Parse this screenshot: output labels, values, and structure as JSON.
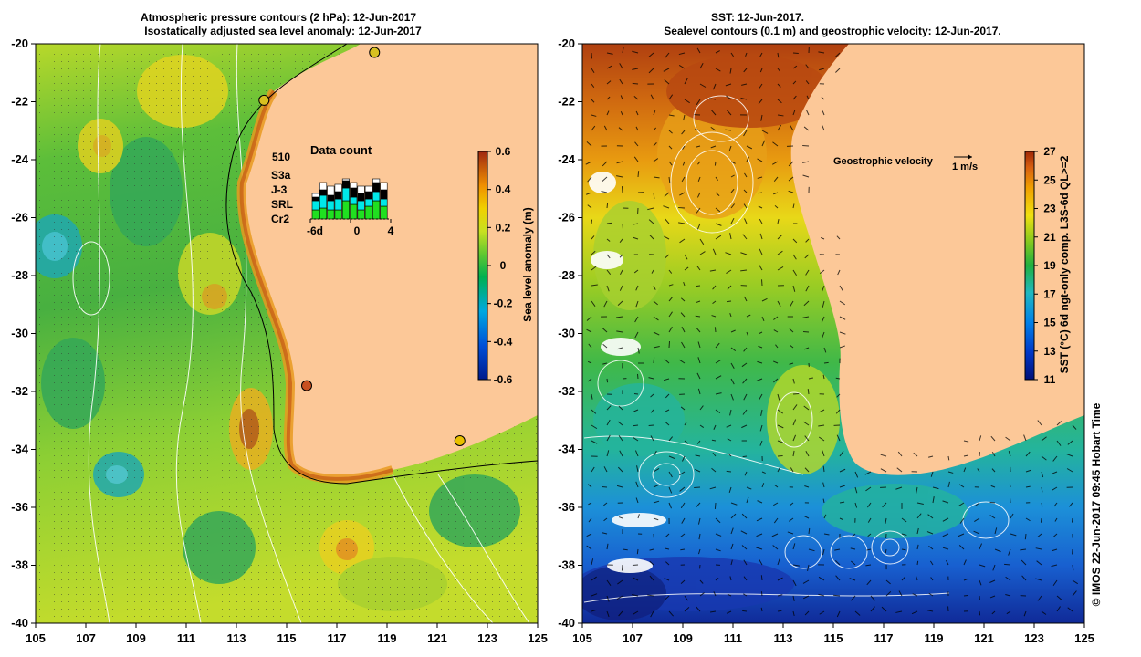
{
  "left_panel": {
    "title_line1": "Atmospheric pressure contours (2 hPa): 12-Jun-2017",
    "title_line2": "Isostatically adjusted sea level anomaly: 12-Jun-2017",
    "colorbar": {
      "label": "Sea level anomaly (m)",
      "ticks": [
        "0.6",
        "0.4",
        "0.2",
        "0",
        "-0.2",
        "-0.4",
        "-0.6"
      ],
      "colors": [
        "#001a8c",
        "#0050d8",
        "#00a8e0",
        "#00b050",
        "#40c830",
        "#b8e020",
        "#f0d000",
        "#f09000",
        "#d05010",
        "#a02810"
      ]
    },
    "inset": {
      "title": "Data count",
      "max_label": "510",
      "missions": [
        {
          "name": "S3a",
          "color": "#ffffff"
        },
        {
          "name": "J-3",
          "color": "#000000"
        },
        {
          "name": "SRL",
          "color": "#00e8e8"
        },
        {
          "name": "Cr2",
          "color": "#20e020"
        }
      ],
      "xticks": [
        "-6d",
        "0",
        "4"
      ]
    },
    "tide_gauges": [
      {
        "lon": 114.1,
        "lat": -21.95,
        "color": "#d8c020"
      },
      {
        "lon": 118.5,
        "lat": -20.3,
        "color": "#d8c020"
      },
      {
        "lon": 115.8,
        "lat": -31.8,
        "color": "#c85020"
      },
      {
        "lon": 121.9,
        "lat": -33.7,
        "color": "#e8c000"
      }
    ]
  },
  "right_panel": {
    "title_line1": "SST: 12-Jun-2017.",
    "title_line2": "Sealevel contours (0.1 m) and geostrophic velocity: 12-Jun-2017.",
    "velocity_label": "Geostrophic velocity",
    "velocity_scale": "1 m/s",
    "colorbar": {
      "label": "SST (°C) 6d ngt-only comp. L3S-6d QL>=2",
      "ticks": [
        "27",
        "25",
        "23",
        "21",
        "19",
        "17",
        "15",
        "13",
        "11"
      ],
      "colors": [
        "#001078",
        "#0038c8",
        "#0080e8",
        "#20b8c0",
        "#20b040",
        "#80c820",
        "#f0e010",
        "#f0a000",
        "#d86010",
        "#a02808"
      ]
    }
  },
  "axes": {
    "lat_ticks": [
      "-20",
      "-22",
      "-24",
      "-26",
      "-28",
      "-30",
      "-32",
      "-34",
      "-36",
      "-38",
      "-40"
    ],
    "lon_ticks": [
      "105",
      "107",
      "109",
      "111",
      "113",
      "115",
      "117",
      "119",
      "121",
      "123",
      "125"
    ]
  },
  "credit": "© IMOS 22-Jun-2017 09:45 Hobart Time",
  "colors": {
    "land": "#fcc898",
    "coast_line": "#000000",
    "contour": "#ffffff"
  }
}
